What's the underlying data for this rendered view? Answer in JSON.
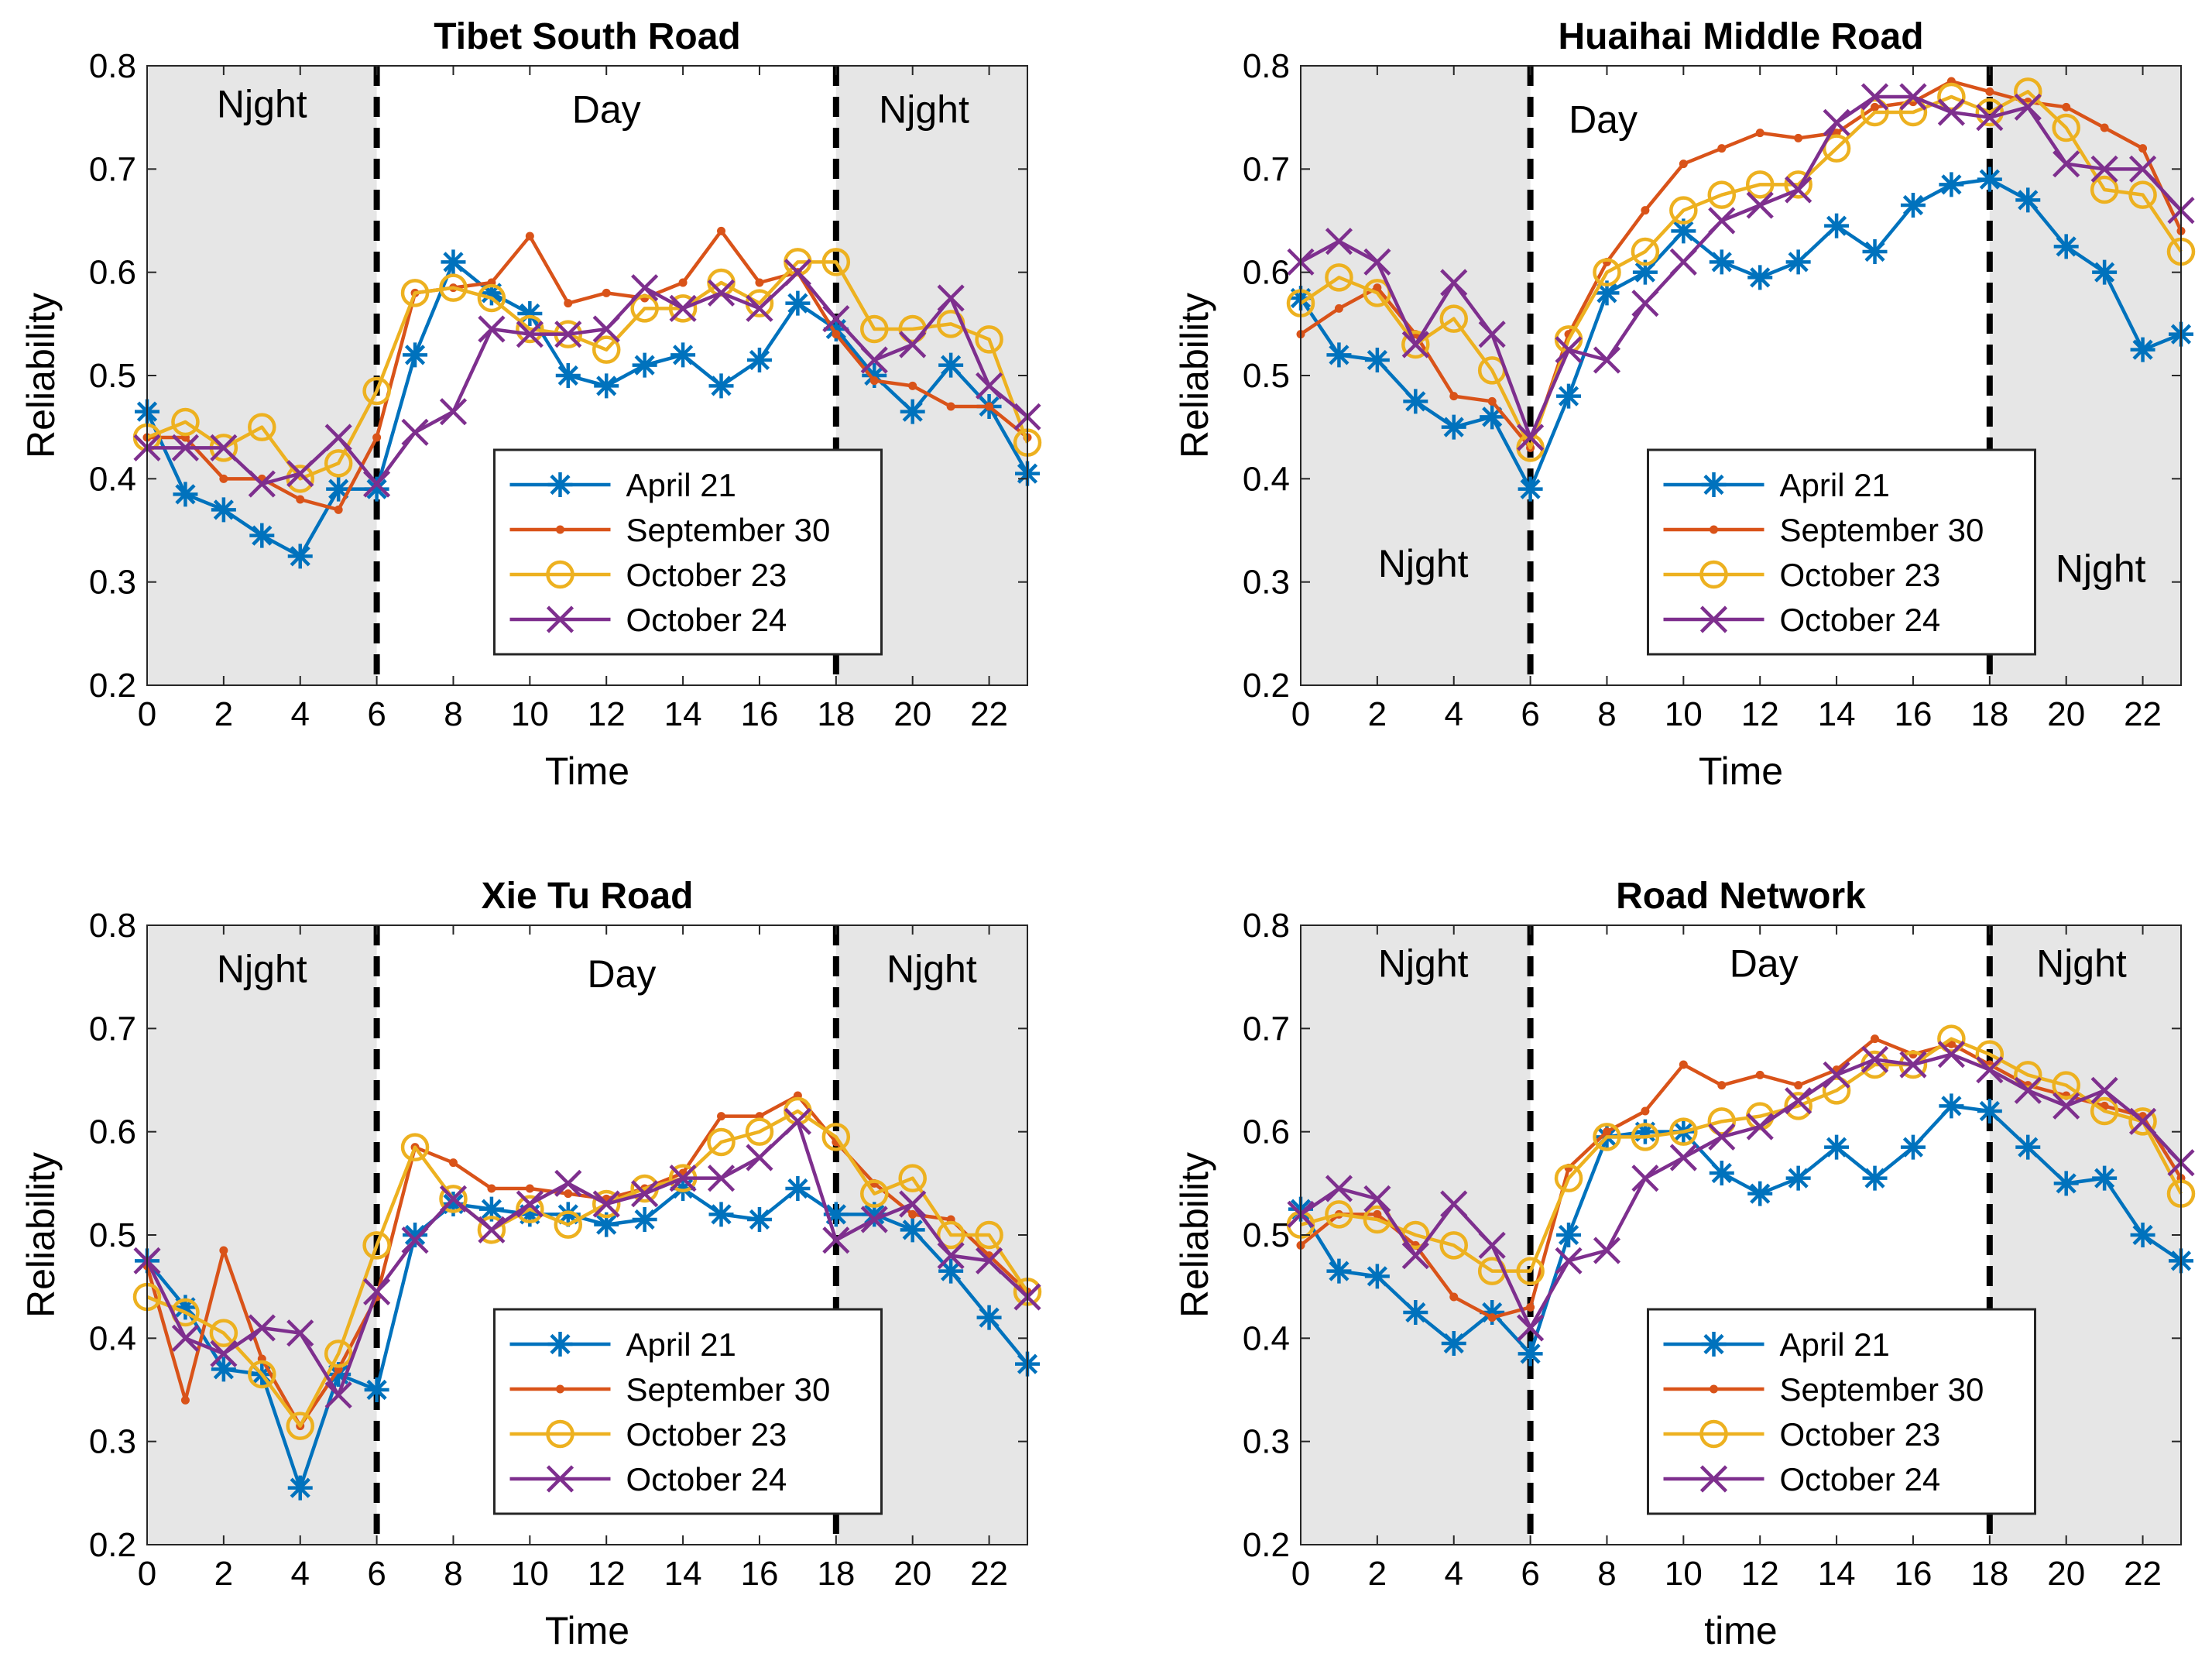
{
  "colors": {
    "night_shade": "#e6e6e6",
    "divider": "#000000",
    "series": [
      "#0072BD",
      "#D95319",
      "#EDB120",
      "#7E2F8E"
    ]
  },
  "chart_data": [
    {
      "type": "line",
      "title": "Tibet South Road",
      "xlabel": "Time",
      "ylabel": "Reliability",
      "xlim": [
        0,
        23
      ],
      "ylim": [
        0.2,
        0.8
      ],
      "xticks": [
        0,
        2,
        4,
        6,
        8,
        10,
        12,
        14,
        16,
        18,
        20,
        22
      ],
      "yticks": [
        0.2,
        0.3,
        0.4,
        0.5,
        0.6,
        0.7,
        0.8
      ],
      "x": [
        0,
        1,
        2,
        3,
        4,
        5,
        6,
        7,
        8,
        9,
        10,
        11,
        12,
        13,
        14,
        15,
        16,
        17,
        18,
        19,
        20,
        21,
        22,
        23
      ],
      "regions": [
        {
          "label": "Njght",
          "from": 0,
          "to": 6,
          "shaded": true,
          "label_x": 3,
          "label_y": 0.75
        },
        {
          "label": "Day",
          "from": 6,
          "to": 18,
          "shaded": false,
          "label_x": 12,
          "label_y": 0.745
        },
        {
          "label": "Njght",
          "from": 18,
          "to": 23,
          "shaded": true,
          "label_x": 20.3,
          "label_y": 0.745
        }
      ],
      "dividers": [
        6,
        18
      ],
      "legend": "lower-center",
      "series": [
        {
          "name": "April 21",
          "marker": "star",
          "values": [
            0.465,
            0.385,
            0.37,
            0.345,
            0.325,
            0.39,
            0.39,
            0.52,
            0.61,
            0.58,
            0.56,
            0.5,
            0.49,
            0.51,
            0.52,
            0.49,
            0.515,
            0.57,
            0.545,
            0.5,
            0.465,
            0.51,
            0.47,
            0.405
          ]
        },
        {
          "name": "September 30",
          "marker": "dot",
          "values": [
            0.44,
            0.44,
            0.4,
            0.4,
            0.38,
            0.37,
            0.44,
            0.58,
            0.585,
            0.59,
            0.635,
            0.57,
            0.58,
            0.575,
            0.59,
            0.64,
            0.59,
            0.6,
            0.54,
            0.495,
            0.49,
            0.47,
            0.47,
            0.44
          ]
        },
        {
          "name": "October 23",
          "marker": "circle",
          "values": [
            0.44,
            0.455,
            0.43,
            0.45,
            0.4,
            0.415,
            0.485,
            0.58,
            0.585,
            0.575,
            0.545,
            0.54,
            0.525,
            0.565,
            0.565,
            0.59,
            0.57,
            0.61,
            0.61,
            0.545,
            0.545,
            0.55,
            0.535,
            0.435
          ]
        },
        {
          "name": "October 24",
          "marker": "x",
          "values": [
            0.43,
            0.43,
            0.43,
            0.395,
            0.405,
            0.44,
            0.395,
            0.445,
            0.465,
            0.545,
            0.54,
            0.54,
            0.545,
            0.585,
            0.565,
            0.58,
            0.565,
            0.6,
            0.555,
            0.515,
            0.53,
            0.575,
            0.49,
            0.46
          ]
        }
      ]
    },
    {
      "type": "line",
      "title": "Huaihai Middle Road",
      "xlabel": "Time",
      "ylabel": "Reliability",
      "xlim": [
        0,
        23
      ],
      "ylim": [
        0.2,
        0.8
      ],
      "xticks": [
        0,
        2,
        4,
        6,
        8,
        10,
        12,
        14,
        16,
        18,
        20,
        22
      ],
      "yticks": [
        0.2,
        0.3,
        0.4,
        0.5,
        0.6,
        0.7,
        0.8
      ],
      "x": [
        0,
        1,
        2,
        3,
        4,
        5,
        6,
        7,
        8,
        9,
        10,
        11,
        12,
        13,
        14,
        15,
        16,
        17,
        18,
        19,
        20,
        21,
        22,
        23
      ],
      "regions": [
        {
          "label": "Njght",
          "from": 0,
          "to": 6,
          "shaded": true,
          "label_x": 3.2,
          "label_y": 0.305
        },
        {
          "label": "Day",
          "from": 6,
          "to": 18,
          "shaded": false,
          "label_x": 7.9,
          "label_y": 0.735
        },
        {
          "label": "Njght",
          "from": 18,
          "to": 23,
          "shaded": true,
          "label_x": 20.9,
          "label_y": 0.3
        }
      ],
      "dividers": [
        6,
        18
      ],
      "legend": "lower-center",
      "series": [
        {
          "name": "April 21",
          "marker": "star",
          "values": [
            0.575,
            0.52,
            0.515,
            0.475,
            0.45,
            0.46,
            0.39,
            0.48,
            0.58,
            0.6,
            0.64,
            0.61,
            0.595,
            0.61,
            0.645,
            0.62,
            0.665,
            0.685,
            0.69,
            0.67,
            0.625,
            0.6,
            0.525,
            0.54
          ]
        },
        {
          "name": "September 30",
          "marker": "dot",
          "values": [
            0.54,
            0.565,
            0.585,
            0.54,
            0.48,
            0.475,
            0.43,
            0.54,
            0.61,
            0.66,
            0.705,
            0.72,
            0.735,
            0.73,
            0.735,
            0.76,
            0.765,
            0.785,
            0.775,
            0.765,
            0.76,
            0.74,
            0.72,
            0.64
          ]
        },
        {
          "name": "October 23",
          "marker": "circle",
          "values": [
            0.57,
            0.595,
            0.58,
            0.53,
            0.555,
            0.505,
            0.43,
            0.535,
            0.6,
            0.62,
            0.66,
            0.675,
            0.685,
            0.685,
            0.72,
            0.755,
            0.755,
            0.77,
            0.755,
            0.775,
            0.74,
            0.68,
            0.675,
            0.62
          ]
        },
        {
          "name": "October 24",
          "marker": "x",
          "values": [
            0.61,
            0.63,
            0.61,
            0.53,
            0.59,
            0.54,
            0.44,
            0.525,
            0.515,
            0.57,
            0.61,
            0.65,
            0.665,
            0.68,
            0.745,
            0.77,
            0.77,
            0.755,
            0.75,
            0.76,
            0.705,
            0.7,
            0.7,
            0.66
          ]
        }
      ]
    },
    {
      "type": "line",
      "title": "Xie Tu Road",
      "xlabel": "Time",
      "ylabel": "Reliability",
      "xlim": [
        0,
        23
      ],
      "ylim": [
        0.2,
        0.8
      ],
      "xticks": [
        0,
        2,
        4,
        6,
        8,
        10,
        12,
        14,
        16,
        18,
        20,
        22
      ],
      "yticks": [
        0.2,
        0.3,
        0.4,
        0.5,
        0.6,
        0.7,
        0.8
      ],
      "x": [
        0,
        1,
        2,
        3,
        4,
        5,
        6,
        7,
        8,
        9,
        10,
        11,
        12,
        13,
        14,
        15,
        16,
        17,
        18,
        19,
        20,
        21,
        22,
        23
      ],
      "regions": [
        {
          "label": "Njght",
          "from": 0,
          "to": 6,
          "shaded": true,
          "label_x": 3,
          "label_y": 0.745
        },
        {
          "label": "Day",
          "from": 6,
          "to": 18,
          "shaded": false,
          "label_x": 12.4,
          "label_y": 0.74
        },
        {
          "label": "Njght",
          "from": 18,
          "to": 23,
          "shaded": true,
          "label_x": 20.5,
          "label_y": 0.745
        }
      ],
      "dividers": [
        6,
        18
      ],
      "legend": "lower-center",
      "series": [
        {
          "name": "April 21",
          "marker": "star",
          "values": [
            0.475,
            0.43,
            0.37,
            0.365,
            0.255,
            0.365,
            0.35,
            0.5,
            0.53,
            0.525,
            0.52,
            0.52,
            0.51,
            0.515,
            0.545,
            0.52,
            0.515,
            0.545,
            0.52,
            0.52,
            0.505,
            0.465,
            0.42,
            0.375
          ]
        },
        {
          "name": "September 30",
          "marker": "dot",
          "values": [
            0.47,
            0.34,
            0.485,
            0.38,
            0.315,
            0.37,
            0.44,
            0.585,
            0.57,
            0.545,
            0.545,
            0.54,
            0.535,
            0.545,
            0.56,
            0.615,
            0.615,
            0.635,
            0.59,
            0.55,
            0.52,
            0.515,
            0.48,
            0.445
          ]
        },
        {
          "name": "October 23",
          "marker": "circle",
          "values": [
            0.44,
            0.425,
            0.405,
            0.365,
            0.315,
            0.385,
            0.49,
            0.585,
            0.535,
            0.505,
            0.525,
            0.51,
            0.53,
            0.545,
            0.555,
            0.59,
            0.6,
            0.62,
            0.595,
            0.54,
            0.555,
            0.5,
            0.5,
            0.445
          ]
        },
        {
          "name": "October 24",
          "marker": "x",
          "values": [
            0.475,
            0.4,
            0.385,
            0.41,
            0.405,
            0.345,
            0.445,
            0.495,
            0.535,
            0.505,
            0.53,
            0.55,
            0.53,
            0.54,
            0.555,
            0.555,
            0.575,
            0.61,
            0.495,
            0.515,
            0.53,
            0.48,
            0.475,
            0.44
          ]
        }
      ]
    },
    {
      "type": "line",
      "title": "Road Network",
      "xlabel": "time",
      "ylabel": "Reliability",
      "xlim": [
        0,
        23
      ],
      "ylim": [
        0.2,
        0.8
      ],
      "xticks": [
        0,
        2,
        4,
        6,
        8,
        10,
        12,
        14,
        16,
        18,
        20,
        22
      ],
      "yticks": [
        0.2,
        0.3,
        0.4,
        0.5,
        0.6,
        0.7,
        0.8
      ],
      "x": [
        0,
        1,
        2,
        3,
        4,
        5,
        6,
        7,
        8,
        9,
        10,
        11,
        12,
        13,
        14,
        15,
        16,
        17,
        18,
        19,
        20,
        21,
        22,
        23
      ],
      "regions": [
        {
          "label": "Njght",
          "from": 0,
          "to": 6,
          "shaded": true,
          "label_x": 3.2,
          "label_y": 0.75
        },
        {
          "label": "Day",
          "from": 6,
          "to": 18,
          "shaded": false,
          "label_x": 12.1,
          "label_y": 0.75
        },
        {
          "label": "Njght",
          "from": 18,
          "to": 23,
          "shaded": true,
          "label_x": 20.4,
          "label_y": 0.75
        }
      ],
      "dividers": [
        6,
        18
      ],
      "legend": "lower-center",
      "series": [
        {
          "name": "April 21",
          "marker": "star",
          "values": [
            0.525,
            0.465,
            0.46,
            0.425,
            0.395,
            0.425,
            0.385,
            0.5,
            0.595,
            0.6,
            0.6,
            0.56,
            0.54,
            0.555,
            0.585,
            0.555,
            0.585,
            0.625,
            0.62,
            0.585,
            0.55,
            0.555,
            0.5,
            0.475
          ]
        },
        {
          "name": "September 30",
          "marker": "dot",
          "values": [
            0.49,
            0.52,
            0.52,
            0.49,
            0.44,
            0.42,
            0.43,
            0.565,
            0.6,
            0.62,
            0.665,
            0.645,
            0.655,
            0.645,
            0.66,
            0.69,
            0.675,
            0.685,
            0.665,
            0.645,
            0.635,
            0.625,
            0.615,
            0.555
          ]
        },
        {
          "name": "October 23",
          "marker": "circle",
          "values": [
            0.51,
            0.52,
            0.515,
            0.5,
            0.49,
            0.465,
            0.465,
            0.555,
            0.595,
            0.595,
            0.6,
            0.61,
            0.615,
            0.625,
            0.64,
            0.665,
            0.665,
            0.69,
            0.675,
            0.655,
            0.645,
            0.62,
            0.61,
            0.54
          ]
        },
        {
          "name": "October 24",
          "marker": "x",
          "values": [
            0.52,
            0.545,
            0.535,
            0.48,
            0.53,
            0.49,
            0.41,
            0.475,
            0.485,
            0.555,
            0.575,
            0.595,
            0.605,
            0.63,
            0.655,
            0.67,
            0.665,
            0.675,
            0.66,
            0.64,
            0.625,
            0.64,
            0.61,
            0.57
          ]
        }
      ]
    }
  ]
}
